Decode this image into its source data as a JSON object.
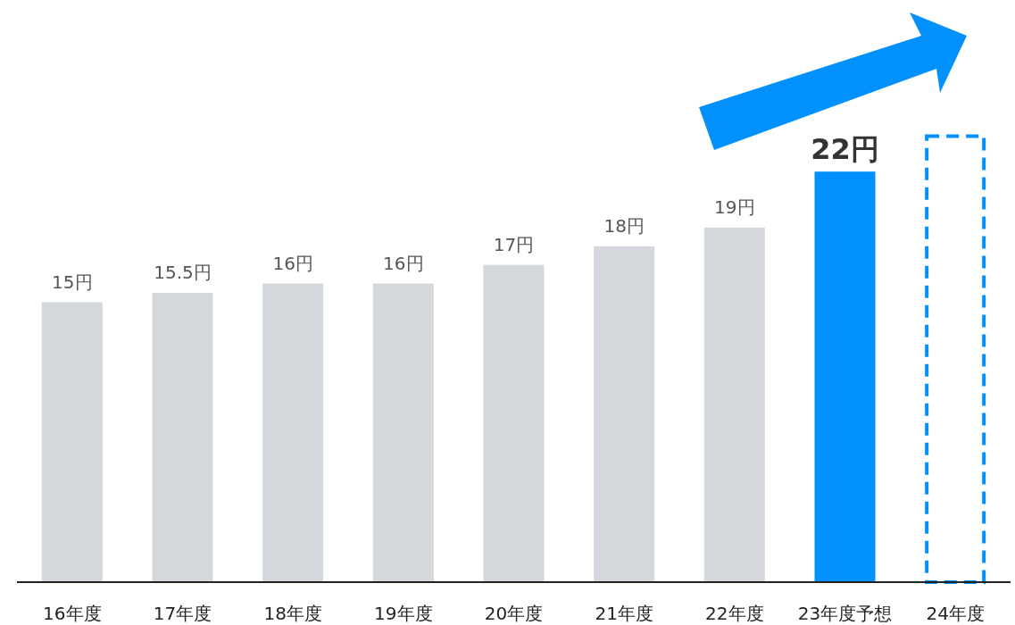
{
  "chart_data": {
    "type": "bar",
    "categories": [
      "16年度",
      "17年度",
      "18年度",
      "19年度",
      "20年度",
      "21年度",
      "22年度",
      "23年度予想",
      "24年度"
    ],
    "series": [
      {
        "values": [
          15,
          15.5,
          16,
          16,
          17,
          18,
          19,
          22,
          null
        ],
        "colors": [
          "#d4d8dc",
          "#d4d8dc",
          "#d4d8dc",
          "#d4d8dc",
          "#d4d8dc",
          "#d4d8dc",
          "#d4d8dc",
          "#0091ff",
          null
        ],
        "value_labels": [
          "15円",
          "15.5円",
          "16円",
          "16円",
          "17円",
          "18円",
          "19円",
          "22円",
          null
        ]
      },
      {
        "values": [
          null,
          null,
          null,
          null,
          null,
          null,
          null,
          null,
          24
        ],
        "color": "#0091ff",
        "line_style": "dashed"
      }
    ],
    "tick_labels": "x"
  }
}
